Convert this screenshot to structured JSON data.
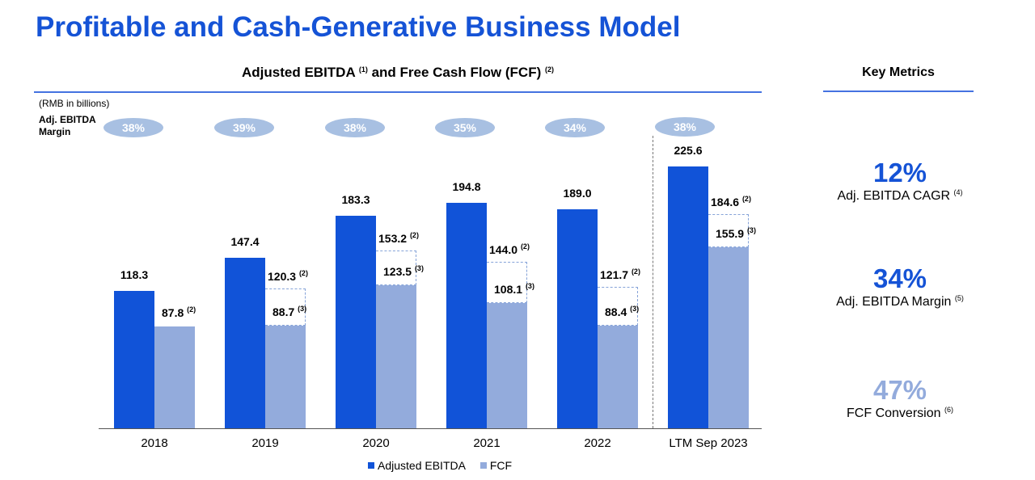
{
  "page_title": "Profitable and Cash-Generative Business Model",
  "chart_heading": {
    "text_a": "Adjusted EBITDA ",
    "sup_a": "(1)",
    "text_b": " and Free Cash Flow (FCF) ",
    "sup_b": "(2)"
  },
  "units_note": "(RMB in billions)",
  "margin_caption": "Adj. EBITDA Margin",
  "chart_data": {
    "type": "bar",
    "title": "Adjusted EBITDA (1) and Free Cash Flow (FCF) (2)",
    "ylabel": "RMB in billions",
    "categories": [
      "2018",
      "2019",
      "2020",
      "2021",
      "2022",
      "LTM Sep 2023"
    ],
    "ylim": [
      0,
      230
    ],
    "series": [
      {
        "name": "Adjusted EBITDA",
        "values": [
          118.3,
          147.4,
          183.3,
          194.8,
          189.0,
          225.6
        ],
        "labels": [
          "118.3",
          "147.4",
          "183.3",
          "194.8",
          "189.0",
          "225.6"
        ]
      },
      {
        "name": "FCF",
        "values": [
          87.8,
          88.7,
          123.5,
          108.1,
          88.4,
          155.9
        ],
        "labels": [
          "87.8",
          "88.7",
          "123.5",
          "108.1",
          "88.4",
          "155.9"
        ],
        "footnotes": [
          "(2)",
          "(3)",
          "(3)",
          "(3)",
          "(3)",
          "(3)"
        ]
      }
    ],
    "fcf_with_note2": {
      "values": [
        null,
        120.3,
        153.2,
        144.0,
        121.7,
        184.6
      ],
      "labels": [
        null,
        "120.3",
        "153.2",
        "144.0",
        "121.7",
        "184.6"
      ],
      "footnote": "(2)"
    },
    "adj_ebitda_margin": [
      "38%",
      "39%",
      "38%",
      "35%",
      "34%",
      "38%"
    ],
    "legend": [
      "Adjusted EBITDA",
      "FCF"
    ],
    "colors": {
      "ebitda": "#1153d8",
      "fcf": "#93abdc"
    }
  },
  "key_metrics": {
    "title": "Key Metrics",
    "items": [
      {
        "value": "12%",
        "label": "Adj. EBITDA CAGR",
        "note": "(4)",
        "color": "#1553d6"
      },
      {
        "value": "34%",
        "label": "Adj. EBITDA Margin",
        "note": "(5)",
        "color": "#1553d6"
      },
      {
        "value": "47%",
        "label": "FCF Conversion",
        "note": "(6)",
        "color": "#93abdc"
      }
    ]
  }
}
